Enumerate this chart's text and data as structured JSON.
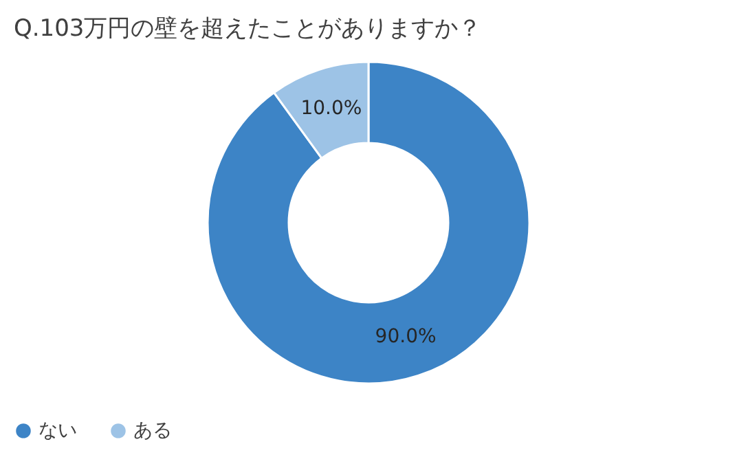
{
  "chart_data": {
    "type": "donut",
    "title": "Q.103万円の壁を超えたことがありますか？",
    "categories": [
      "ない",
      "ある"
    ],
    "values": [
      90,
      10
    ],
    "colors": [
      "#3d84c6",
      "#9dc3e6"
    ],
    "value_labels": [
      "90.0%",
      "10.0%"
    ],
    "legend": "bottom"
  }
}
